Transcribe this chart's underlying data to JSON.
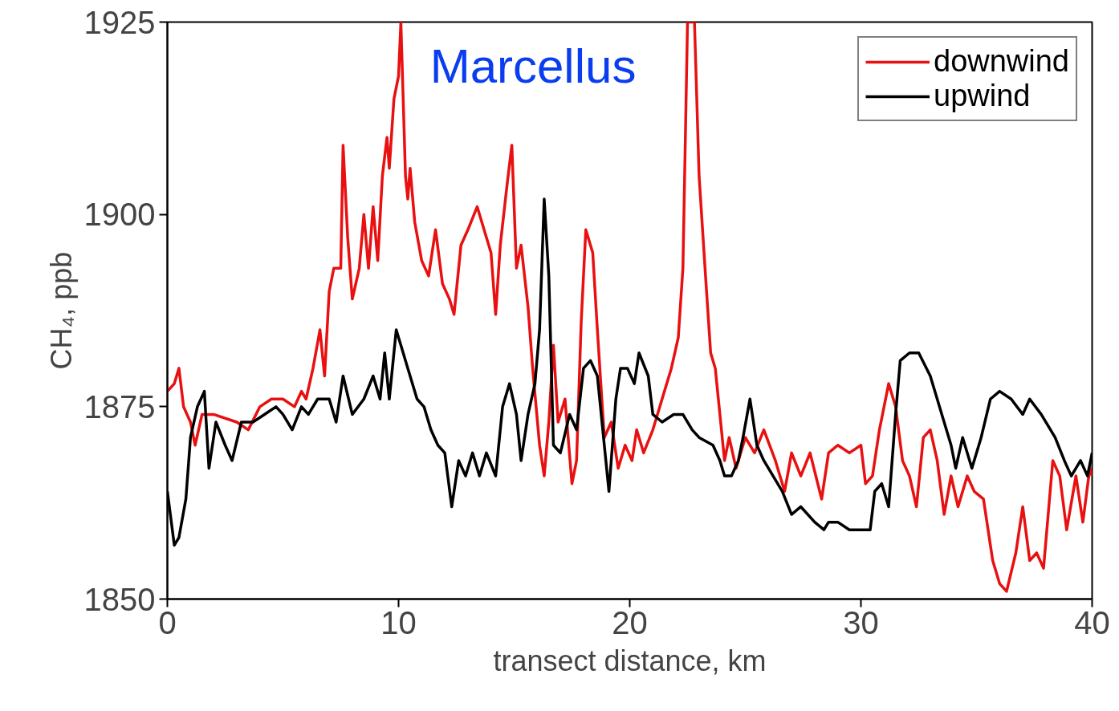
{
  "chart_data": {
    "type": "line",
    "title": "Marcellus",
    "xlabel": "transect distance, km",
    "ylabel": "CH₄, ppb",
    "xlim": [
      0,
      40
    ],
    "xticks": [
      0,
      10,
      20,
      30,
      40
    ],
    "ylim": [
      1850,
      1925
    ],
    "yticks": [
      1850,
      1875,
      1900,
      1925
    ],
    "grid": false,
    "legend": "top right",
    "line_style": "solid",
    "series": [
      {
        "name": "downwind",
        "color": "#e81010",
        "x": [
          0,
          0.3,
          0.5,
          0.7,
          1.0,
          1.2,
          1.5,
          2,
          3,
          3.5,
          4,
          4.5,
          5,
          5.5,
          5.8,
          6,
          6.3,
          6.6,
          6.8,
          7,
          7.2,
          7.5,
          7.6,
          7.8,
          8,
          8.3,
          8.5,
          8.7,
          8.9,
          9.1,
          9.3,
          9.5,
          9.6,
          9.8,
          10.0,
          10.1,
          10.3,
          10.4,
          10.5,
          10.7,
          11,
          11.3,
          11.6,
          11.9,
          12.2,
          12.4,
          12.7,
          13,
          13.4,
          13.7,
          14.0,
          14.2,
          14.4,
          14.7,
          14.9,
          15.1,
          15.3,
          15.6,
          15.8,
          16.1,
          16.3,
          16.5,
          16.7,
          16.9,
          17.2,
          17.5,
          17.7,
          17.9,
          18.1,
          18.4,
          18.6,
          18.9,
          19.2,
          19.5,
          19.8,
          20.1,
          20.3,
          20.6,
          21,
          21.4,
          21.8,
          22.1,
          22.3,
          22.5,
          22.8,
          23,
          23.3,
          23.5,
          23.7,
          23.9,
          24.1,
          24.3,
          24.6,
          25,
          25.4,
          25.8,
          26.3,
          26.7,
          27,
          27.4,
          27.8,
          28.3,
          28.6,
          29,
          29.5,
          30,
          30.2,
          30.5,
          30.8,
          31.2,
          31.5,
          31.8,
          32.1,
          32.4,
          32.7,
          33,
          33.3,
          33.6,
          33.9,
          34.2,
          34.6,
          34.9,
          35.3,
          35.7,
          36,
          36.3,
          36.7,
          37,
          37.3,
          37.6,
          37.9,
          38.3,
          38.6,
          38.9,
          39.3,
          39.6,
          39.9,
          40
        ],
        "values": [
          1877,
          1878,
          1880,
          1875,
          1873,
          1870,
          1874,
          1874,
          1873,
          1872,
          1875,
          1876,
          1876,
          1875,
          1877,
          1876,
          1880,
          1885,
          1879,
          1890,
          1893,
          1893,
          1909,
          1897,
          1889,
          1893,
          1900,
          1893,
          1901,
          1894,
          1905,
          1910,
          1906,
          1915,
          1918,
          1925,
          1905,
          1902,
          1906,
          1899,
          1894,
          1892,
          1898,
          1891,
          1889,
          1887,
          1896,
          1898,
          1901,
          1898,
          1895,
          1887,
          1896,
          1904,
          1909,
          1893,
          1896,
          1888,
          1880,
          1870,
          1866,
          1873,
          1883,
          1873,
          1876,
          1865,
          1868,
          1886,
          1898,
          1895,
          1885,
          1871,
          1873,
          1867,
          1870,
          1868,
          1872,
          1869,
          1872,
          1876,
          1880,
          1884,
          1893,
          1925,
          1925,
          1905,
          1891,
          1882,
          1880,
          1874,
          1868,
          1871,
          1867,
          1871,
          1869,
          1872,
          1868,
          1864,
          1869,
          1866,
          1869,
          1863,
          1869,
          1870,
          1869,
          1870,
          1865,
          1866,
          1872,
          1878,
          1875,
          1868,
          1866,
          1862,
          1871,
          1872,
          1868,
          1861,
          1866,
          1862,
          1866,
          1864,
          1863,
          1855,
          1852,
          1851,
          1856,
          1862,
          1855,
          1856,
          1854,
          1868,
          1866,
          1859,
          1866,
          1860,
          1867,
          1866
        ]
      },
      {
        "name": "upwind",
        "color": "#000000",
        "x": [
          0,
          0.3,
          0.5,
          0.8,
          1,
          1.3,
          1.6,
          1.8,
          2.1,
          2.5,
          2.8,
          3.2,
          3.7,
          4.2,
          4.7,
          5,
          5.4,
          5.8,
          6.1,
          6.5,
          7,
          7.3,
          7.6,
          8,
          8.5,
          8.9,
          9.2,
          9.4,
          9.6,
          9.9,
          10.2,
          10.4,
          10.8,
          11.1,
          11.4,
          11.7,
          12,
          12.3,
          12.6,
          12.9,
          13.2,
          13.5,
          13.8,
          14.2,
          14.5,
          14.8,
          15.1,
          15.3,
          15.6,
          15.9,
          16.1,
          16.3,
          16.5,
          16.7,
          17,
          17.4,
          17.7,
          18,
          18.3,
          18.6,
          18.9,
          19.1,
          19.4,
          19.6,
          19.9,
          20.2,
          20.4,
          20.8,
          21,
          21.4,
          21.9,
          22.3,
          22.7,
          23,
          23.6,
          23.9,
          24.1,
          24.4,
          24.7,
          24.9,
          25.2,
          25.5,
          25.8,
          26.2,
          26.6,
          27,
          27.4,
          28,
          28.4,
          28.6,
          29,
          29.5,
          30,
          30.4,
          30.6,
          30.9,
          31.2,
          31.5,
          31.7,
          32.1,
          32.5,
          33,
          33.5,
          33.9,
          34.1,
          34.4,
          34.8,
          35.2,
          35.6,
          36,
          36.5,
          37,
          37.3,
          37.8,
          38.4,
          38.8,
          39.1,
          39.5,
          39.8,
          40
        ],
        "values": [
          1864,
          1857,
          1858,
          1863,
          1871,
          1875,
          1877,
          1867,
          1873,
          1870,
          1868,
          1873,
          1873,
          1874,
          1875,
          1874,
          1872,
          1875,
          1874,
          1876,
          1876,
          1873,
          1879,
          1874,
          1876,
          1879,
          1876,
          1882,
          1876,
          1885,
          1882,
          1880,
          1876,
          1875,
          1872,
          1870,
          1869,
          1862,
          1868,
          1866,
          1869,
          1866,
          1869,
          1866,
          1875,
          1878,
          1874,
          1868,
          1874,
          1878,
          1885,
          1902,
          1892,
          1870,
          1869,
          1874,
          1872,
          1880,
          1881,
          1879,
          1870,
          1864,
          1876,
          1880,
          1880,
          1878,
          1882,
          1879,
          1874,
          1873,
          1874,
          1874,
          1872,
          1871,
          1870,
          1868,
          1866,
          1866,
          1868,
          1871,
          1876,
          1870,
          1868,
          1866,
          1864,
          1861,
          1862,
          1860,
          1859,
          1860,
          1860,
          1859,
          1859,
          1859,
          1864,
          1865,
          1862,
          1874,
          1881,
          1882,
          1882,
          1879,
          1874,
          1870,
          1867,
          1871,
          1867,
          1871,
          1876,
          1877,
          1876,
          1874,
          1876,
          1874,
          1871,
          1868,
          1866,
          1868,
          1866,
          1869
        ]
      }
    ]
  }
}
